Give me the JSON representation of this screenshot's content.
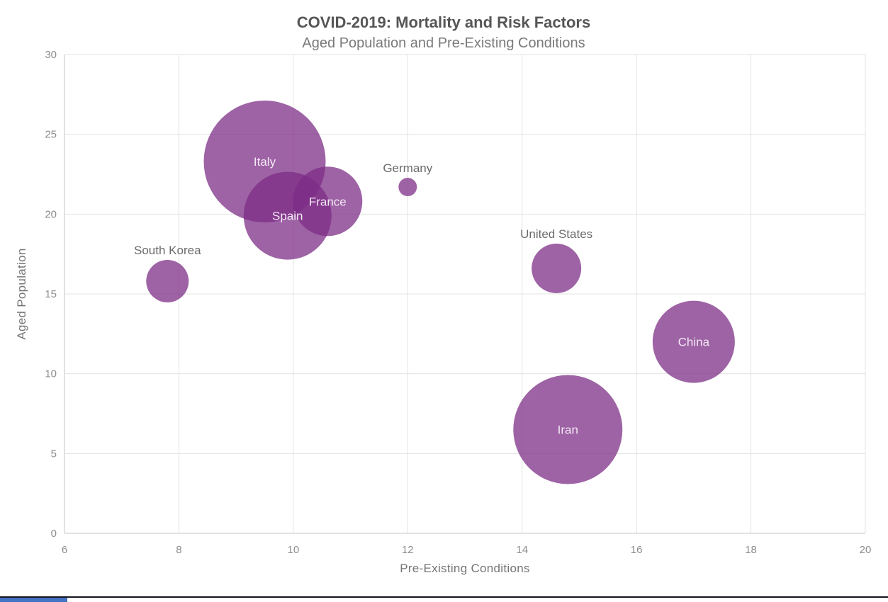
{
  "chart_data": {
    "type": "scatter",
    "subtype": "bubble",
    "title": "COVID-2019: Mortality and Risk Factors",
    "subtitle": "Aged Population and Pre-Existing Conditions",
    "xlabel": "Pre-Existing Conditions",
    "ylabel": "Aged Population",
    "xlim": [
      6,
      20
    ],
    "ylim": [
      0,
      30
    ],
    "x_ticks": [
      6,
      8,
      10,
      12,
      14,
      16,
      18,
      20
    ],
    "y_ticks": [
      0,
      5,
      10,
      15,
      20,
      25,
      30
    ],
    "grid": true,
    "legend": false,
    "bubble_fill": "#7c2d86",
    "bubble_opacity": 0.74,
    "points": [
      {
        "name": "Italy",
        "x": 9.5,
        "y": 23.3,
        "radius_px": 86,
        "label_inside": true
      },
      {
        "name": "Spain",
        "x": 9.9,
        "y": 19.9,
        "radius_px": 62,
        "label_inside": true
      },
      {
        "name": "France",
        "x": 10.6,
        "y": 20.8,
        "radius_px": 49,
        "label_inside": true
      },
      {
        "name": "Germany",
        "x": 12.0,
        "y": 21.7,
        "radius_px": 13,
        "label_inside": false
      },
      {
        "name": "South Korea",
        "x": 7.8,
        "y": 15.8,
        "radius_px": 30,
        "label_inside": false
      },
      {
        "name": "United States",
        "x": 14.6,
        "y": 16.6,
        "radius_px": 35,
        "label_inside": false
      },
      {
        "name": "China",
        "x": 17.0,
        "y": 12.0,
        "radius_px": 58,
        "label_inside": true
      },
      {
        "name": "Iran",
        "x": 14.8,
        "y": 6.5,
        "radius_px": 77,
        "label_inside": true
      }
    ],
    "colors": {
      "grid": "#e3e3e3",
      "axis_line": "#c4c4c4",
      "title_text": "#565656",
      "subtitle_text": "#7a7a7a",
      "tick_text": "#8c8c8c",
      "label_inside_text": "#f3e9f4",
      "label_outside_text": "#6b6b6b"
    }
  },
  "footer": {
    "rule_color": "#15151f",
    "scrollbar_thumb_color": "#4472c4"
  }
}
